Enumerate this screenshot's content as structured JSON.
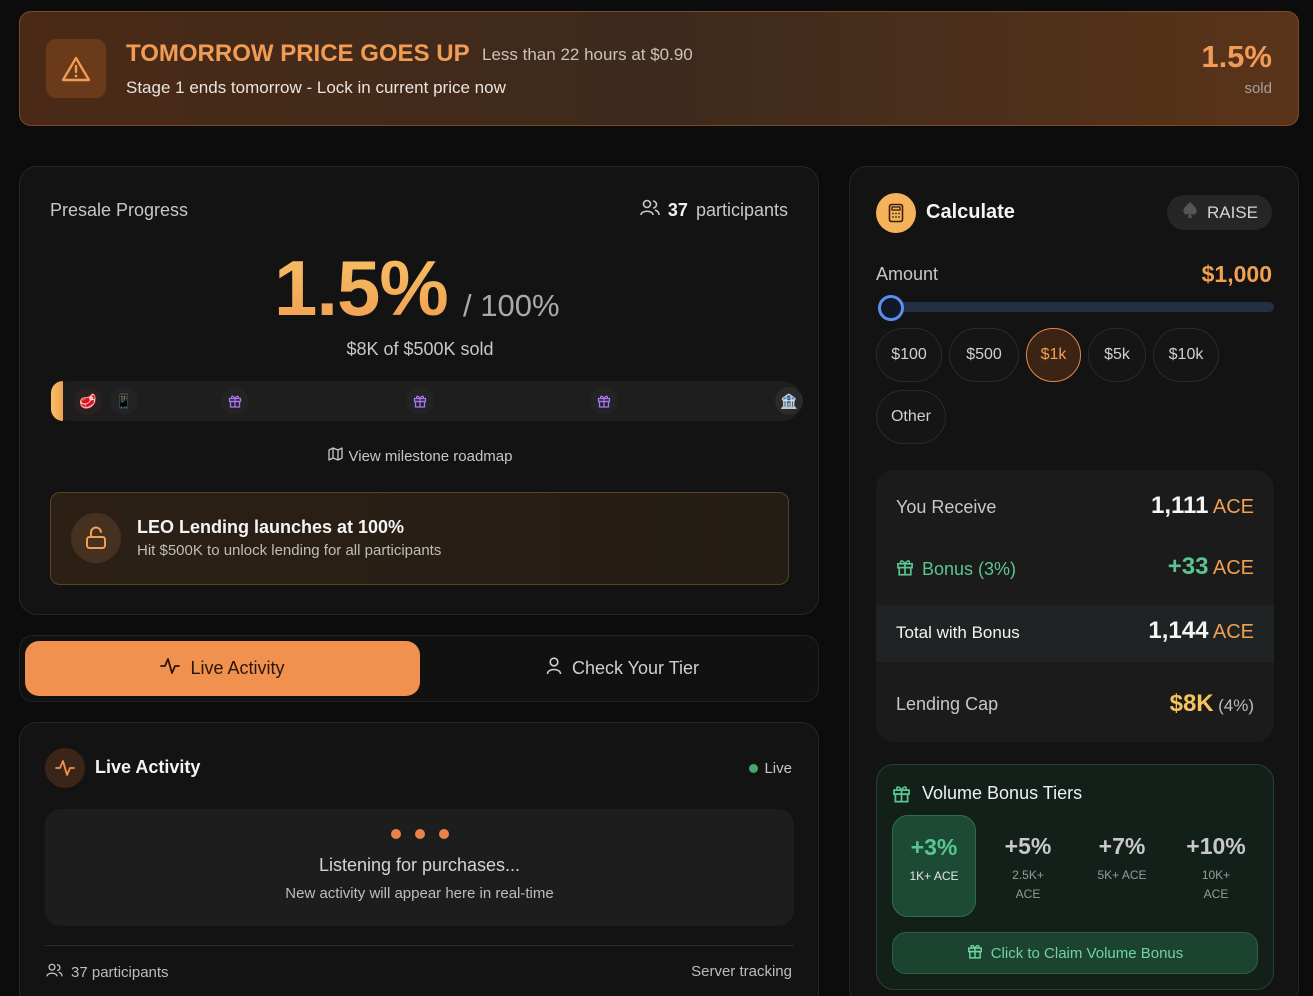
{
  "banner": {
    "title": "TOMORROW PRICE GOES UP",
    "subtitle": "Less than 22 hours at $0.90",
    "line2": "Stage 1 ends tomorrow - Lock in current price now",
    "percent": "1.5%",
    "sold_label": "sold",
    "icon": "warning-icon"
  },
  "progress": {
    "title": "Presale Progress",
    "participants_count": "37",
    "participants_label": "participants",
    "big_percent": "1.5%",
    "of_total": "/ 100%",
    "sold_text": "$8K of $500K sold",
    "fill_fraction": 0.015,
    "milestones": [
      "steak-icon",
      "phone-icon",
      "gift-icon",
      "gift-icon",
      "gift-icon",
      "bank-icon"
    ],
    "roadmap_link": "View milestone roadmap",
    "lending_title": "LEO Lending launches at 100%",
    "lending_sub": "Hit $500K to unlock lending for all participants"
  },
  "tabs": {
    "live_activity": "Live Activity",
    "check_tier": "Check Your Tier"
  },
  "activity": {
    "title": "Live Activity",
    "live_label": "Live",
    "listening_title": "Listening for purchases...",
    "listening_sub": "New activity will appear here in real-time",
    "participants_text": "37 participants",
    "server_tracking": "Server tracking"
  },
  "calculator": {
    "title": "Calculate",
    "raise_label": "RAISE",
    "amount_label": "Amount",
    "amount_value": "$1,000",
    "slider_fraction": 0.0,
    "chips": [
      "$100",
      "$500",
      "$1k",
      "$5k",
      "$10k",
      "Other"
    ],
    "active_chip": "$1k",
    "you_receive_label": "You Receive",
    "you_receive_value": "1,111",
    "unit": "ACE",
    "bonus_label": "Bonus (3%)",
    "bonus_value": "+33",
    "total_label": "Total with Bonus",
    "total_value": "1,144",
    "lending_cap_label": "Lending Cap",
    "lending_cap_value": "$8K",
    "lending_cap_pct": "(4%)"
  },
  "volume": {
    "title": "Volume Bonus Tiers",
    "tiers": [
      {
        "pct": "+3%",
        "line1": "1K+ ACE",
        "line2": ""
      },
      {
        "pct": "+5%",
        "line1": "2.5K+",
        "line2": "ACE"
      },
      {
        "pct": "+7%",
        "line1": "5K+ ACE",
        "line2": ""
      },
      {
        "pct": "+10%",
        "line1": "10K+",
        "line2": "ACE"
      }
    ],
    "claim_label": "Click to Claim Volume Bonus"
  },
  "colors": {
    "accent": "#f0914f",
    "green": "#5bc591",
    "background": "#0c0c0c"
  }
}
